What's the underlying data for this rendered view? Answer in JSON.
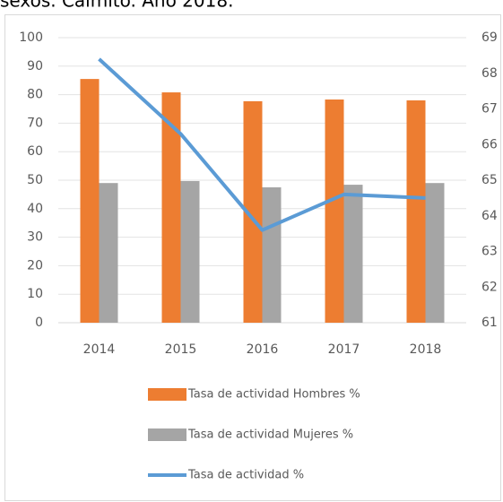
{
  "chart_data": {
    "type": "bar",
    "title": "sexos. Caimito. Año 2018.",
    "categories": [
      "2014",
      "2015",
      "2016",
      "2017",
      "2018"
    ],
    "series": [
      {
        "name": "Tasa de actividad Hombres %",
        "color": "#ed7d31",
        "type": "bar",
        "values": [
          85.5,
          80.8,
          77.7,
          78.3,
          78.0
        ]
      },
      {
        "name": "Tasa de actividad Mujeres %",
        "color": "#a5a5a5",
        "type": "bar",
        "values": [
          49.0,
          49.7,
          47.5,
          48.4,
          49.0
        ]
      },
      {
        "name": "Tasa de actividad %",
        "color": "#5b9bd5",
        "type": "line",
        "axis": "y2",
        "values": [
          68.4,
          66.3,
          63.6,
          64.6,
          64.5
        ]
      }
    ],
    "ylim": [
      0,
      100
    ],
    "yticks": [
      0,
      10,
      20,
      30,
      40,
      50,
      60,
      70,
      80,
      90,
      100
    ],
    "y2lim": [
      61,
      69
    ],
    "y2ticks": [
      61,
      62,
      63,
      64,
      65,
      66,
      67,
      68,
      69
    ],
    "grid": true,
    "legend": "bottom"
  }
}
